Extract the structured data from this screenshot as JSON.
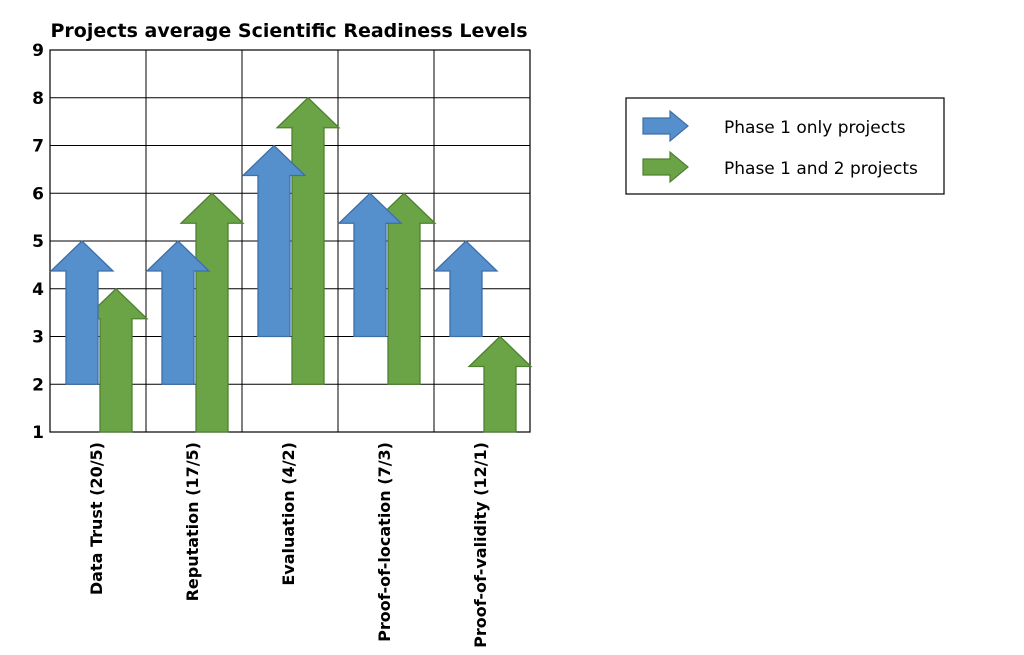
{
  "chart_data": {
    "type": "bar",
    "title": "Projects average Scientific Readiness Levels",
    "xlabel": "",
    "ylabel": "",
    "ylim": [
      1,
      9
    ],
    "yticks": [
      1,
      2,
      3,
      4,
      5,
      6,
      7,
      8,
      9
    ],
    "grid": true,
    "legend_position": "right",
    "categories": [
      "Data Trust (20/5)",
      "Reputation (17/5)",
      "Evaluation (4/2)",
      "Proof-of-location (7/3)",
      "Proof-of-validity (12/1)"
    ],
    "series": [
      {
        "name": "Phase 1 only projects",
        "color": "#5590cc",
        "start": [
          2,
          2,
          3,
          3,
          3
        ],
        "end": [
          5,
          5,
          7,
          6,
          5
        ]
      },
      {
        "name": "Phase 1 and 2 projects",
        "color": "#6aa446",
        "start": [
          1,
          1,
          2,
          2,
          1
        ],
        "end": [
          4,
          6,
          8,
          6,
          3
        ]
      }
    ]
  }
}
